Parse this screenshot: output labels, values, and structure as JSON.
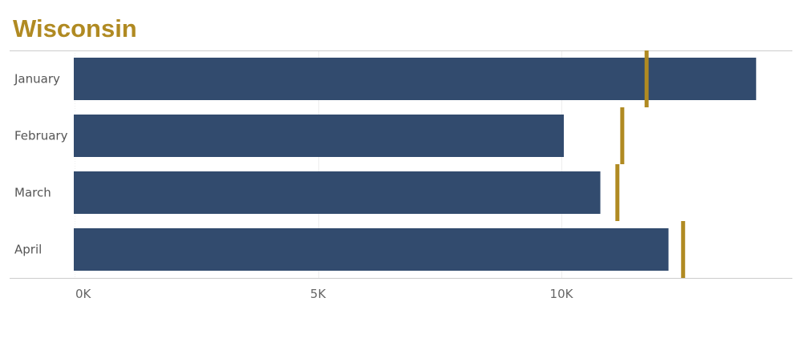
{
  "title": "Wisconsin",
  "colors": {
    "title": "#b08a22",
    "bar": "#324b6e",
    "target": "#b08a22",
    "axis": "#cccccc",
    "grid": "#eeeeee"
  },
  "chart_data": {
    "type": "bar",
    "orientation": "horizontal",
    "title": "Wisconsin",
    "categories": [
      "January",
      "February",
      "March",
      "April"
    ],
    "series": [
      {
        "values": [
          14000,
          10050,
          10800,
          12200
        ]
      }
    ],
    "reference_marks": [
      11750,
      11250,
      11150,
      12500
    ],
    "xlim": [
      0,
      14500
    ],
    "xticks": [
      {
        "value": 0,
        "label": "0K"
      },
      {
        "value": 5000,
        "label": "5K"
      },
      {
        "value": 10000,
        "label": "10K"
      }
    ],
    "xlabel": "",
    "ylabel": "",
    "grid": true
  }
}
